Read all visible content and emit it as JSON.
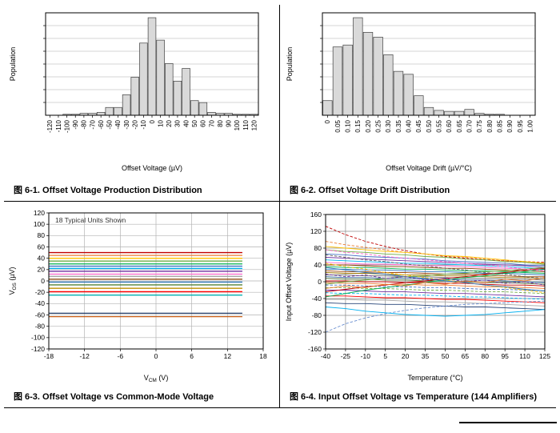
{
  "figures": [
    {
      "marker": "图",
      "label": "6-1. Offset Voltage Production Distribution"
    },
    {
      "marker": "图",
      "label": "6-2. Offset Voltage Drift Distribution"
    },
    {
      "marker": "图",
      "label": "6-3. Offset Voltage vs Common-Mode Voltage"
    },
    {
      "marker": "图",
      "label": "6-4. Input Offset Voltage vs Temperature (144 Amplifiers)"
    }
  ],
  "chart_data": [
    {
      "type": "bar",
      "figure": "6-1",
      "xlabel": "Offset Voltage (µV)",
      "ylabel": "Population",
      "categories": [
        "-120",
        "-110",
        "-100",
        "-90",
        "-80",
        "-70",
        "-60",
        "-50",
        "-40",
        "-30",
        "-20",
        "-10",
        "0",
        "10",
        "20",
        "30",
        "40",
        "50",
        "60",
        "70",
        "80",
        "90",
        "100",
        "110",
        "120"
      ],
      "values": [
        0,
        0,
        1,
        1,
        2,
        2,
        3,
        8,
        8,
        21,
        39,
        74,
        100,
        77,
        53,
        35,
        48,
        15,
        13,
        3,
        2,
        2,
        1,
        1,
        1
      ],
      "ylim": [
        0,
        105
      ],
      "grid_divisions": 8,
      "grid_color": "#c6c6c6",
      "bar_fill": "#d9d9d9",
      "bar_stroke": "#404040"
    },
    {
      "type": "bar",
      "figure": "6-2",
      "xlabel": "Offset Voltage Drift (µV/°C)",
      "ylabel": "Population",
      "categories": [
        "0",
        "0.05",
        "0.10",
        "0.15",
        "0.20",
        "0.25",
        "0.30",
        "0.35",
        "0.40",
        "0.45",
        "0.50",
        "0.55",
        "0.60",
        "0.65",
        "0.70",
        "0.75",
        "0.80",
        "0.85",
        "0.90",
        "0.95",
        "1.00"
      ],
      "values": [
        15,
        70,
        72,
        100,
        85,
        80,
        62,
        45,
        42,
        20,
        8,
        5,
        4,
        4,
        6,
        2,
        1,
        1,
        0,
        0,
        0
      ],
      "ylim": [
        0,
        105
      ],
      "grid_divisions": 8,
      "grid_color": "#c6c6c6",
      "bar_fill": "#d9d9d9",
      "bar_stroke": "#404040"
    },
    {
      "type": "line",
      "figure": "6-3",
      "xlabel_parts": [
        {
          "t": "V"
        },
        {
          "t": "CM",
          "sub": true
        },
        {
          "t": " (V)"
        }
      ],
      "ylabel_parts": [
        {
          "t": "V"
        },
        {
          "t": "OS",
          "sub": true
        },
        {
          "t": " (µV)"
        }
      ],
      "xlim": [
        -18,
        18
      ],
      "xticks": [
        -18,
        -12,
        -6,
        0,
        6,
        12,
        18
      ],
      "ylim": [
        -120,
        120
      ],
      "yticks": [
        -120,
        -100,
        -80,
        -60,
        -40,
        -20,
        0,
        20,
        40,
        60,
        80,
        100,
        120
      ],
      "annotation": "18 Typical Units Shown",
      "units_shown": 18,
      "grid_color": "#b3b3b3",
      "series_x_start": -18,
      "series_x_end": 14.5,
      "series": [
        {
          "value": 50,
          "color": "#c00000"
        },
        {
          "value": 45,
          "color": "#ed7d31"
        },
        {
          "value": 40,
          "color": "#ffc000"
        },
        {
          "value": 35,
          "color": "#70ad47"
        },
        {
          "value": 30,
          "color": "#00b050"
        },
        {
          "value": 26,
          "color": "#4472c4"
        },
        {
          "value": 22,
          "color": "#00b0f0"
        },
        {
          "value": 17,
          "color": "#7030a0"
        },
        {
          "value": 12,
          "color": "#ff66cc"
        },
        {
          "value": 8,
          "color": "#a6a6a6"
        },
        {
          "value": 3,
          "color": "#833c00"
        },
        {
          "value": -2,
          "color": "#2e75b6"
        },
        {
          "value": -7,
          "color": "#548235"
        },
        {
          "value": -13,
          "color": "#bf8f00"
        },
        {
          "value": -19,
          "color": "#ff0000"
        },
        {
          "value": -25,
          "color": "#00b0b0"
        },
        {
          "value": -57,
          "color": "#1f3864"
        },
        {
          "value": -63,
          "color": "#c55a11"
        }
      ]
    },
    {
      "type": "line",
      "figure": "6-4",
      "xlabel_parts": [
        {
          "t": "Temperature (°C)"
        }
      ],
      "ylabel_parts": [
        {
          "t": "Input Offset Voltage (µV)"
        }
      ],
      "xlim": [
        -40,
        125
      ],
      "xticks": [
        -40,
        -25,
        -10,
        5,
        20,
        35,
        50,
        65,
        80,
        95,
        110,
        125
      ],
      "ylim": [
        -160,
        160
      ],
      "yticks": [
        -160,
        -120,
        -80,
        -40,
        0,
        40,
        80,
        120,
        160
      ],
      "grid_color": "#8c8c8c",
      "amplifier_count": 144,
      "x": [
        -40,
        -25,
        -10,
        5,
        20,
        35,
        50,
        65,
        80,
        95,
        110,
        125
      ],
      "series": [
        {
          "color": "#c00000",
          "dash": true,
          "values": [
            132,
            112,
            96,
            84,
            74,
            66,
            60,
            56,
            52,
            50,
            48,
            46
          ]
        },
        {
          "color": "#ed7d31",
          "dash": true,
          "values": [
            96,
            88,
            82,
            76,
            70,
            66,
            62,
            58,
            54,
            50,
            46,
            42
          ]
        },
        {
          "color": "#ffc000",
          "dash": false,
          "values": [
            84,
            80,
            76,
            72,
            70,
            66,
            62,
            60,
            56,
            52,
            48,
            44
          ]
        },
        {
          "color": "#70ad47",
          "dash": false,
          "values": [
            76,
            72,
            70,
            66,
            64,
            60,
            58,
            54,
            52,
            48,
            46,
            42
          ]
        },
        {
          "color": "#4472c4",
          "dash": false,
          "values": [
            66,
            64,
            60,
            58,
            56,
            54,
            50,
            48,
            46,
            44,
            40,
            38
          ]
        },
        {
          "color": "#7030a0",
          "dash": false,
          "values": [
            58,
            56,
            54,
            52,
            50,
            48,
            46,
            44,
            42,
            40,
            38,
            34
          ]
        },
        {
          "color": "#00b0f0",
          "dash": false,
          "values": [
            52,
            50,
            48,
            46,
            44,
            44,
            42,
            40,
            38,
            36,
            34,
            30
          ]
        },
        {
          "color": "#ff66cc",
          "dash": false,
          "values": [
            46,
            44,
            42,
            42,
            40,
            38,
            38,
            36,
            34,
            32,
            30,
            28
          ]
        },
        {
          "color": "#833c00",
          "dash": false,
          "values": [
            40,
            40,
            38,
            36,
            36,
            34,
            32,
            32,
            30,
            28,
            26,
            24
          ]
        },
        {
          "color": "#00b050",
          "dash": false,
          "values": [
            36,
            34,
            34,
            32,
            30,
            30,
            28,
            26,
            26,
            24,
            22,
            20
          ]
        },
        {
          "color": "#2e75b6",
          "dash": false,
          "values": [
            30,
            30,
            28,
            28,
            26,
            24,
            24,
            22,
            20,
            20,
            18,
            16
          ]
        },
        {
          "color": "#9e480e",
          "dash": false,
          "values": [
            26,
            24,
            24,
            22,
            22,
            20,
            18,
            18,
            16,
            14,
            12,
            12
          ]
        },
        {
          "color": "#997300",
          "dash": false,
          "values": [
            22,
            20,
            20,
            18,
            16,
            16,
            14,
            14,
            12,
            10,
            10,
            8
          ]
        },
        {
          "color": "#636363",
          "dash": false,
          "values": [
            16,
            16,
            14,
            14,
            12,
            12,
            10,
            8,
            8,
            6,
            6,
            4
          ]
        },
        {
          "color": "#255e91",
          "dash": false,
          "values": [
            12,
            10,
            10,
            8,
            8,
            6,
            6,
            4,
            4,
            2,
            0,
            -2
          ]
        },
        {
          "color": "#43682b",
          "dash": false,
          "values": [
            8,
            6,
            6,
            4,
            4,
            2,
            2,
            0,
            -2,
            -2,
            -4,
            -6
          ]
        },
        {
          "color": "#c00000",
          "dash": false,
          "values": [
            2,
            2,
            0,
            0,
            -2,
            -2,
            -4,
            -4,
            -6,
            -8,
            -8,
            -10
          ]
        },
        {
          "color": "#ed7d31",
          "dash": false,
          "values": [
            -2,
            -4,
            -4,
            -6,
            -6,
            -8,
            -8,
            -10,
            -12,
            -12,
            -14,
            -16
          ]
        },
        {
          "color": "#4472c4",
          "dash": true,
          "values": [
            -8,
            -8,
            -10,
            -12,
            -12,
            -14,
            -14,
            -16,
            -18,
            -18,
            -20,
            -22
          ]
        },
        {
          "color": "#70ad47",
          "dash": true,
          "values": [
            -14,
            -14,
            -16,
            -16,
            -18,
            -20,
            -20,
            -22,
            -24,
            -24,
            -26,
            -28
          ]
        },
        {
          "color": "#7030a0",
          "dash": false,
          "values": [
            -20,
            -20,
            -22,
            -24,
            -24,
            -26,
            -28,
            -28,
            -30,
            -32,
            -34,
            -36
          ]
        },
        {
          "color": "#00b0f0",
          "dash": true,
          "values": [
            -26,
            -28,
            -28,
            -30,
            -32,
            -32,
            -34,
            -36,
            -36,
            -38,
            -40,
            -42
          ]
        },
        {
          "color": "#ff0000",
          "dash": false,
          "values": [
            -34,
            -34,
            -36,
            -38,
            -38,
            -40,
            -42,
            -42,
            -44,
            -46,
            -48,
            -50
          ]
        },
        {
          "color": "#a6a6a6",
          "dash": false,
          "values": [
            -42,
            -42,
            -44,
            -44,
            -46,
            -48,
            -48,
            -50,
            -52,
            -54,
            -56,
            -58
          ]
        },
        {
          "color": "#264478",
          "dash": false,
          "values": [
            -50,
            -52,
            -52,
            -54,
            -54,
            -56,
            -58,
            -60,
            -60,
            -62,
            -64,
            -66
          ]
        },
        {
          "color": "#698ed0",
          "dash": true,
          "values": [
            -120,
            -100,
            -86,
            -76,
            -68,
            -62,
            -58,
            -54,
            -52,
            -50,
            -48,
            -46
          ]
        },
        {
          "color": "#00b050",
          "dash": false,
          "values": [
            -36,
            -28,
            -20,
            -14,
            -8,
            -2,
            4,
            10,
            14,
            20,
            24,
            30
          ]
        },
        {
          "color": "#c00000",
          "dash": false,
          "values": [
            -24,
            -18,
            -12,
            -8,
            -2,
            2,
            8,
            12,
            18,
            22,
            28,
            32
          ]
        },
        {
          "color": "#ffc000",
          "dash": true,
          "values": [
            44,
            36,
            30,
            22,
            16,
            10,
            4,
            -2,
            -8,
            -14,
            -20,
            -26
          ]
        },
        {
          "color": "#2e75b6",
          "dash": false,
          "values": [
            34,
            28,
            22,
            18,
            12,
            8,
            2,
            -2,
            -8,
            -12,
            -18,
            -22
          ]
        },
        {
          "color": "#70ad47",
          "dash": false,
          "values": [
            -6,
            0,
            4,
            8,
            12,
            14,
            18,
            20,
            24,
            26,
            30,
            34
          ]
        },
        {
          "color": "#7030a0",
          "dash": true,
          "values": [
            18,
            12,
            16,
            8,
            12,
            4,
            8,
            0,
            4,
            -4,
            0,
            -8
          ]
        },
        {
          "color": "#ed7d31",
          "dash": false,
          "values": [
            -16,
            -10,
            -14,
            -6,
            -10,
            -2,
            -6,
            2,
            -2,
            6,
            2,
            10
          ]
        },
        {
          "color": "#636363",
          "dash": true,
          "values": [
            64,
            58,
            52,
            48,
            42,
            38,
            32,
            28,
            22,
            18,
            12,
            8
          ]
        },
        {
          "color": "#00b0f0",
          "dash": false,
          "values": [
            -60,
            -64,
            -70,
            -74,
            -78,
            -80,
            -82,
            -80,
            -78,
            -74,
            -70,
            -66
          ]
        },
        {
          "color": "#ff66cc",
          "dash": true,
          "values": [
            76,
            70,
            66,
            60,
            56,
            52,
            48,
            44,
            40,
            36,
            30,
            26
          ]
        }
      ]
    }
  ]
}
